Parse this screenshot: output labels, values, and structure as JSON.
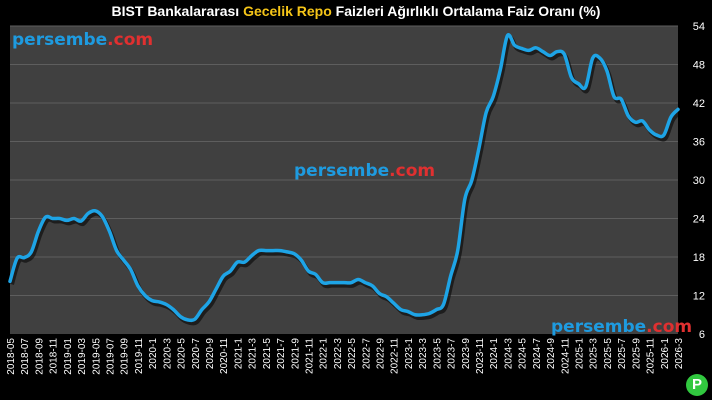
{
  "title": {
    "part1": "BIST Bankalararası ",
    "highlight": "Gecelik Repo",
    "part2": " Faizleri Ağırlıklı Ortalama Faiz Oranı (%)"
  },
  "watermarks": {
    "brand": "persembe",
    "tld": ".com"
  },
  "logo_letter": "P",
  "colors": {
    "background": "#000000",
    "plot_background": "#404040",
    "line": "#1ea4e6",
    "title_highlight": "#f5c518",
    "watermark_blue": "#1e9be0",
    "watermark_red": "#e03030",
    "logo": "#31c83f"
  },
  "chart_data": {
    "type": "line",
    "title": "BIST Bankalararası Gecelik Repo Faizleri Ağırlıklı Ortalama Faiz Oranı (%)",
    "xlabel": "",
    "ylabel": "",
    "y_axis_position": "right",
    "ylim": [
      6,
      54
    ],
    "yticks": [
      6,
      12,
      18,
      24,
      30,
      36,
      42,
      48,
      54
    ],
    "grid": true,
    "x_tick_labels": [
      "2018-05",
      "2018-07",
      "2018-09",
      "2018-11",
      "2019-01",
      "2019-03",
      "2019-05",
      "2019-07",
      "2019-09",
      "2019-11",
      "2020-1",
      "2020-3",
      "2020-5",
      "2020-7",
      "2020-9",
      "2020-11",
      "2021-1",
      "2021-3",
      "2021-5",
      "2021-7",
      "2021-9",
      "2021-11",
      "2022-1",
      "2022-3",
      "2022-5",
      "2022-7",
      "2022-9",
      "2022-11",
      "2023-1",
      "2023-3",
      "2023-5",
      "2023-7",
      "2023-9",
      "2023-11",
      "2024-1",
      "2024-3",
      "2024-5",
      "2024-7",
      "2024-9",
      "2024-11",
      "2025-1",
      "2025-3",
      "2025-5",
      "2025-7",
      "2025-9",
      "2025-11",
      "2026-1",
      "2026-3"
    ],
    "series": [
      {
        "name": "",
        "x": [
          "2018-05",
          "2018-06",
          "2018-07",
          "2018-08",
          "2018-09",
          "2018-10",
          "2018-11",
          "2018-12",
          "2019-01",
          "2019-02",
          "2019-03",
          "2019-04",
          "2019-05",
          "2019-06",
          "2019-07",
          "2019-08",
          "2019-09",
          "2019-10",
          "2019-11",
          "2019-12",
          "2020-01",
          "2020-02",
          "2020-03",
          "2020-04",
          "2020-05",
          "2020-06",
          "2020-07",
          "2020-08",
          "2020-09",
          "2020-10",
          "2020-11",
          "2020-12",
          "2021-01",
          "2021-02",
          "2021-03",
          "2021-04",
          "2021-05",
          "2021-06",
          "2021-07",
          "2021-08",
          "2021-09",
          "2021-10",
          "2021-11",
          "2021-12",
          "2022-01",
          "2022-02",
          "2022-03",
          "2022-04",
          "2022-05",
          "2022-06",
          "2022-07",
          "2022-08",
          "2022-09",
          "2022-10",
          "2022-11",
          "2022-12",
          "2023-01",
          "2023-02",
          "2023-03",
          "2023-04",
          "2023-05",
          "2023-06",
          "2023-07",
          "2023-08",
          "2023-09",
          "2023-10",
          "2023-11",
          "2023-12",
          "2024-01",
          "2024-02",
          "2024-03",
          "2024-04",
          "2024-05",
          "2024-06",
          "2024-07",
          "2024-08",
          "2024-09",
          "2024-10",
          "2024-11",
          "2024-12",
          "2025-01",
          "2025-02",
          "2025-03",
          "2025-04",
          "2025-05",
          "2025-06",
          "2025-07",
          "2025-08",
          "2025-09",
          "2025-10",
          "2025-11",
          "2025-12",
          "2026-01",
          "2026-02",
          "2026-03"
        ],
        "values": [
          14.2,
          17.8,
          17.9,
          18.8,
          22.0,
          24.2,
          24.0,
          24.0,
          23.7,
          24.0,
          23.6,
          24.8,
          25.2,
          24.3,
          22.0,
          19.0,
          17.5,
          16.0,
          13.5,
          12.0,
          11.2,
          11.0,
          10.6,
          9.8,
          8.7,
          8.2,
          8.3,
          9.8,
          11.0,
          13.0,
          15.0,
          15.8,
          17.2,
          17.2,
          18.2,
          19.0,
          19.0,
          19.0,
          19.0,
          18.8,
          18.5,
          17.5,
          15.8,
          15.3,
          14.0,
          14.0,
          14.0,
          14.0,
          14.0,
          14.5,
          14.0,
          13.5,
          12.3,
          11.8,
          10.8,
          9.8,
          9.5,
          9.0,
          9.0,
          9.2,
          9.8,
          10.6,
          15.0,
          19.0,
          27.0,
          30.0,
          35.0,
          40.5,
          43.0,
          47.2,
          52.5,
          51.0,
          50.5,
          50.2,
          50.6,
          50.0,
          49.4,
          50.0,
          49.6,
          46.0,
          45.0,
          44.5,
          49.0,
          49.0,
          47.0,
          43.0,
          42.6,
          40.0,
          39.0,
          39.2,
          37.8,
          37.0,
          37.0,
          39.8,
          41.0
        ]
      }
    ]
  }
}
